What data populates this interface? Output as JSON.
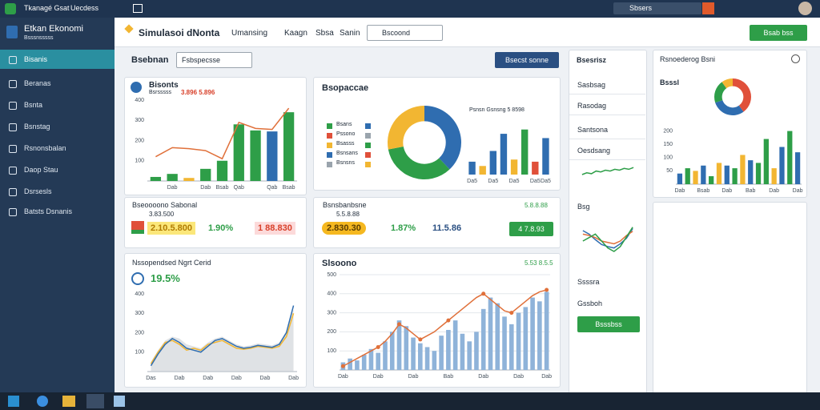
{
  "topbar": {
    "app": "Tkanagé Gsat",
    "menu": "Uecdess",
    "search": "Sbsers"
  },
  "sidebar": {
    "title": "Etkan Ekonomi",
    "subtitle": "Bsssnsssss",
    "items": [
      "Bisanis",
      "Beranas",
      "Bsnta",
      "Bsnstag",
      "Rsnonsbalan",
      "Daop Stau",
      "Dsrsesls",
      "Batsts Dsnanis"
    ]
  },
  "header": {
    "title": "Simulasoi dNonta",
    "tabs": [
      "Umansing",
      "Kaagn",
      "Sbsa",
      "Sanin"
    ],
    "select": "Bscoond",
    "button": "Bsab bss"
  },
  "toolbar": {
    "label": "Bsebnan",
    "select": "Fsbspecsse",
    "button": "Bsecst sonne"
  },
  "panels": {
    "bisonts": {
      "title": "Bisonts",
      "subtitle": "Bsrsssss",
      "highlight": "3.896 5.896",
      "chart": {
        "type": "combo",
        "categories": [
          null,
          "Dab",
          null,
          "Dab",
          "Bsab",
          "Qab",
          null,
          "Qab",
          "Bsab"
        ],
        "ylim": [
          0,
          400
        ],
        "yticks": [
          100,
          200,
          300,
          400
        ],
        "grid": false,
        "series": [
          {
            "kind": "bar",
            "values": [
              20,
              35,
              15,
              60,
              100,
              280,
              250,
              245,
              340
            ],
            "colors": [
              "#2e9e48",
              "#2e9e48",
              "#f2b632",
              "#2e9e48",
              "#2e9e48",
              "#2e9e48",
              "#2e9e48",
              "#2f6db0",
              "#2e9e48"
            ]
          },
          {
            "kind": "line",
            "color": "#e0703a",
            "values": [
              120,
              165,
              160,
              150,
              110,
              290,
              260,
              255,
              360
            ]
          }
        ]
      }
    },
    "donut": {
      "title": "Bsopaccae",
      "legend": [
        "Bsans",
        "Pssono",
        "Bsasss",
        "Bsnsans",
        "Bsnsns"
      ],
      "legend_colors": [
        "#2e9e48",
        "#e0503a",
        "#f2b632",
        "#2f6db0",
        "#9aa4ad"
      ],
      "chart": {
        "type": "donut",
        "values": [
          38,
          34,
          28
        ],
        "colors": [
          "#2f6db0",
          "#2e9e48",
          "#f2b632"
        ]
      },
      "bar_label": "Psnsn Gsnsng 5 8598",
      "bars": {
        "type": "combo",
        "categories": [
          "Da5",
          null,
          "Da5",
          null,
          "Da5",
          null,
          "Da5",
          "Da5"
        ],
        "ylim": [
          0,
          250
        ],
        "grid": false,
        "series": [
          {
            "kind": "bar",
            "values": [
              60,
              40,
              110,
              190,
              70,
              210,
              60,
              170
            ],
            "colors": [
              "#2f6db0",
              "#f2b632",
              "#2f6db0",
              "#2f6db0",
              "#f2b632",
              "#2e9e48",
              "#e0503a",
              "#2f6db0"
            ]
          }
        ]
      }
    },
    "kpi1": {
      "title": "Bseoooono Sabonal",
      "sub": "3.83.500",
      "values": [
        "2.10.5.800",
        "1.90%",
        "1 88.830"
      ]
    },
    "kpi2": {
      "title": "Bsnsbanbsne",
      "sub": "5.5.8.88",
      "right": "5.8.8.88",
      "values": [
        "2.830.30",
        "1.87%",
        "11.5.86"
      ],
      "button": "4 7.8.93"
    },
    "trend": {
      "title": "Nssopendsed Ngrt Cerid",
      "big": "19.5%",
      "chart": {
        "type": "combo",
        "categories": [
          "Das",
          null,
          null,
          null,
          "Dab",
          null,
          null,
          null,
          "Dab",
          null,
          null,
          null,
          "Dab",
          null,
          null,
          null,
          "Dab",
          null,
          null,
          null,
          "Dab"
        ],
        "ylim": [
          0,
          400
        ],
        "yticks": [
          100,
          200,
          300,
          400
        ],
        "grid": false,
        "series": [
          {
            "kind": "area",
            "color": "#c9ced4",
            "values": [
              50,
              110,
              160,
              180,
              170,
              140,
              130,
              120,
              150,
              170,
              180,
              160,
              140,
              130,
              135,
              145,
              140,
              135,
              150,
              210,
              320
            ]
          },
          {
            "kind": "line",
            "color": "#f2b632",
            "values": [
              40,
              100,
              150,
              160,
              140,
              110,
              120,
              110,
              140,
              150,
              160,
              140,
              120,
              115,
              120,
              130,
              125,
              120,
              130,
              180,
              300
            ]
          },
          {
            "kind": "line",
            "color": "#2f6db0",
            "values": [
              30,
              90,
              140,
              170,
              150,
              120,
              110,
              100,
              130,
              160,
              170,
              150,
              130,
              120,
              125,
              135,
              130,
              125,
              140,
              200,
              340
            ]
          }
        ]
      }
    },
    "volume": {
      "title": "Slsoono",
      "right": "5.53 8.5.5",
      "chart": {
        "type": "combo",
        "categories": [
          "Dab",
          null,
          null,
          null,
          null,
          "Dab",
          null,
          null,
          null,
          null,
          "Dab",
          null,
          null,
          null,
          null,
          "Bab",
          null,
          null,
          null,
          null,
          "Dab",
          null,
          null,
          null,
          null,
          "Dab",
          null,
          null,
          null,
          "Dab"
        ],
        "ylim": [
          0,
          500
        ],
        "yticks": [
          100,
          200,
          300,
          400,
          500
        ],
        "grid": true,
        "series": [
          {
            "kind": "bar",
            "color": "#8fb3d9",
            "values": [
              40,
              60,
              50,
              80,
              110,
              90,
              150,
              200,
              260,
              230,
              170,
              140,
              120,
              100,
              180,
              210,
              260,
              190,
              150,
              200,
              320,
              380,
              350,
              280,
              240,
              300,
              330,
              380,
              360,
              410
            ]
          },
          {
            "kind": "line",
            "color": "#e0703a",
            "dots": [
              0,
              5,
              8,
              11,
              15,
              20,
              24,
              29
            ],
            "values": [
              20,
              40,
              60,
              80,
              100,
              120,
              150,
              190,
              240,
              220,
              190,
              160,
              180,
              200,
              230,
              260,
              290,
              320,
              350,
              380,
              400,
              370,
              340,
              310,
              300,
              330,
              360,
              390,
              410,
              420
            ]
          }
        ]
      }
    },
    "side": {
      "title": "Bsesrisz",
      "items": [
        "Sasbsag",
        "Rasodag",
        "Santsona",
        "Oesdsang",
        "Bsg",
        "Ssssra",
        "Gssboh"
      ],
      "button": "Bsssbss",
      "spark1": {
        "type": "combo",
        "ylim": [
          0,
          20
        ],
        "series": [
          {
            "kind": "line",
            "color": "#2e9e48",
            "values": [
              10,
              12,
              11,
              14,
              13,
              15,
              14,
              16,
              15,
              17,
              16,
              18
            ]
          }
        ]
      },
      "spark2": {
        "type": "combo",
        "ylim": [
          0,
          60
        ],
        "series": [
          {
            "kind": "line",
            "color": "#2f6db0",
            "values": [
              45,
              40,
              32,
              25,
              22,
              20,
              26,
              34,
              48
            ]
          },
          {
            "kind": "line",
            "color": "#e0703a",
            "values": [
              40,
              38,
              35,
              30,
              28,
              26,
              30,
              38,
              44
            ]
          },
          {
            "kind": "line",
            "color": "#2e9e48",
            "values": [
              30,
              35,
              40,
              30,
              20,
              15,
              22,
              36,
              50
            ]
          }
        ]
      }
    },
    "right": {
      "title": "Rsnoederog Bsni",
      "sub": "Bsssl",
      "donut": {
        "type": "donut",
        "values": [
          40,
          30,
          20,
          10
        ],
        "colors": [
          "#e0503a",
          "#2f6db0",
          "#2e9e48",
          "#f2b632"
        ]
      },
      "chart": {
        "type": "combo",
        "categories": [
          "Dab",
          null,
          null,
          "Bsab",
          null,
          null,
          "Dab",
          null,
          null,
          "Bab",
          null,
          null,
          "Dab",
          null,
          null,
          "Dab"
        ],
        "ylim": [
          0,
          250
        ],
        "yticks": [
          50,
          100,
          150,
          200
        ],
        "grid": false,
        "series": [
          {
            "kind": "bar",
            "values": [
              40,
              60,
              50,
              70,
              30,
              80,
              70,
              60,
              110,
              90,
              80,
              170,
              60,
              140,
              200,
              120
            ],
            "colors": [
              "#2f6db0",
              "#2e9e48",
              "#f2b632",
              "#2f6db0",
              "#2e9e48",
              "#f2b632",
              "#2f6db0",
              "#2e9e48",
              "#f2b632",
              "#2f6db0",
              "#2e9e48",
              "#2e9e48",
              "#f2b632",
              "#2f6db0",
              "#2e9e48",
              "#2f6db0"
            ]
          }
        ]
      }
    }
  }
}
